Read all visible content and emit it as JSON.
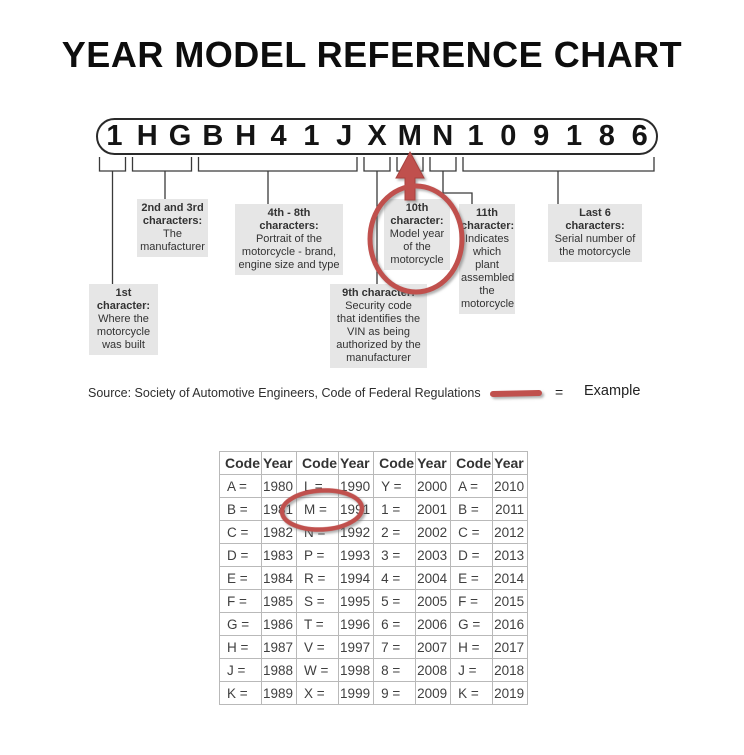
{
  "title": "YEAR MODEL REFERENCE CHART",
  "vin": {
    "characters": [
      "1",
      "H",
      "G",
      "B",
      "H",
      "4",
      "1",
      "J",
      "X",
      "M",
      "N",
      "1",
      "0",
      "9",
      "1",
      "8",
      "6"
    ]
  },
  "callouts": [
    {
      "id": "first",
      "header": "1st\ncharacter:",
      "body": "Where the\nmotorcycle\nwas built"
    },
    {
      "id": "second-third",
      "header": "2nd and 3rd\ncharacters:",
      "body": "The\nmanufacturer"
    },
    {
      "id": "fourth-eighth",
      "header": "4th - 8th\ncharacters:",
      "body": "Portrait of the\nmotorcycle - brand,\nengine size and type"
    },
    {
      "id": "ninth",
      "header": "9th character:",
      "body": "Security code\nthat identifies the\nVIN as being\nauthorized by the\nmanufacturer"
    },
    {
      "id": "tenth",
      "header": "10th\ncharacter:",
      "body": "Model year\nof the\nmotorcycle"
    },
    {
      "id": "eleventh",
      "header": "11th\ncharacter:",
      "body": "Indicates\nwhich plant\nassembled\nthe\nmotorcycle"
    },
    {
      "id": "last-six",
      "header": "Last 6\ncharacters:",
      "body": "Serial number of\nthe motorcycle"
    }
  ],
  "source_line": "Source:  Society of Automotive Engineers, Code of Federal Regulations",
  "legend": {
    "equals": "=",
    "label": "Example"
  },
  "table": {
    "headers": [
      "Code",
      "Year",
      "Code",
      "Year",
      "Code",
      "Year",
      "Code",
      "Year"
    ],
    "rows": [
      [
        "A =",
        "1980",
        "L =",
        "1990",
        "Y =",
        "2000",
        "A =",
        "2010"
      ],
      [
        "B =",
        "1981",
        "M =",
        "1991",
        "1 =",
        "2001",
        "B =",
        "2011"
      ],
      [
        "C =",
        "1982",
        "N =",
        "1992",
        "2 =",
        "2002",
        "C =",
        "2012"
      ],
      [
        "D =",
        "1983",
        "P =",
        "1993",
        "3 =",
        "2003",
        "D =",
        "2013"
      ],
      [
        "E =",
        "1984",
        "R =",
        "1994",
        "4 =",
        "2004",
        "E =",
        "2014"
      ],
      [
        "F =",
        "1985",
        "S =",
        "1995",
        "5 =",
        "2005",
        "F =",
        "2015"
      ],
      [
        "G =",
        "1986",
        "T =",
        "1996",
        "6 =",
        "2006",
        "G =",
        "2016"
      ],
      [
        "H =",
        "1987",
        "V =",
        "1997",
        "7 =",
        "2007",
        "H =",
        "2017"
      ],
      [
        "J =",
        "1988",
        "W =",
        "1998",
        "8 =",
        "2008",
        "J =",
        "2018"
      ],
      [
        "K =",
        "1989",
        "X =",
        "1999",
        "9 =",
        "2009",
        "K =",
        "2019"
      ]
    ],
    "highlighted_entry": {
      "code": "M =",
      "year": "1991"
    }
  },
  "colors": {
    "accent_red": "#c0504d",
    "callout_bg": "#e6e6e6",
    "table_border": "#b9b9b9"
  }
}
